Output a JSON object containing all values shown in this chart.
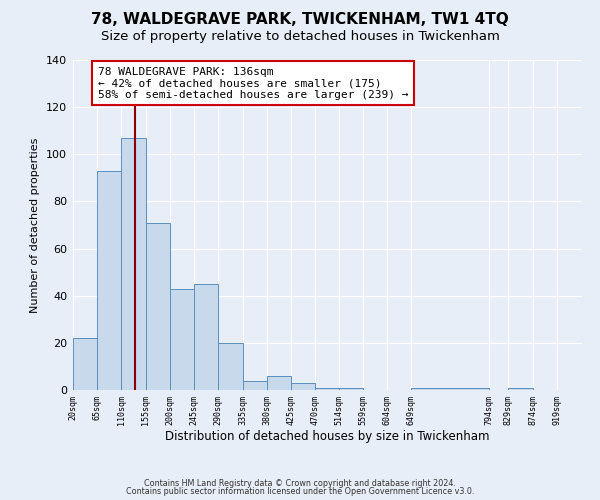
{
  "title": "78, WALDEGRAVE PARK, TWICKENHAM, TW1 4TQ",
  "subtitle": "Size of property relative to detached houses in Twickenham",
  "xlabel": "Distribution of detached houses by size in Twickenham",
  "ylabel": "Number of detached properties",
  "bin_labels": [
    "20sqm",
    "65sqm",
    "110sqm",
    "155sqm",
    "200sqm",
    "245sqm",
    "290sqm",
    "335sqm",
    "380sqm",
    "425sqm",
    "470sqm",
    "514sqm",
    "559sqm",
    "604sqm",
    "649sqm",
    "794sqm",
    "829sqm",
    "874sqm",
    "919sqm"
  ],
  "bar_heights": [
    22,
    93,
    107,
    71,
    43,
    45,
    20,
    4,
    6,
    3,
    1,
    1,
    0,
    0,
    1,
    0,
    1,
    0
  ],
  "bin_edges": [
    20,
    65,
    110,
    155,
    200,
    245,
    290,
    335,
    380,
    425,
    470,
    514,
    559,
    604,
    649,
    794,
    829,
    874,
    919
  ],
  "bar_color": "#c9d9ec",
  "bar_edge_color": "#5a8fc0",
  "property_line_x": 136,
  "property_line_color": "#8b0000",
  "annotation_text": "78 WALDEGRAVE PARK: 136sqm\n← 42% of detached houses are smaller (175)\n58% of semi-detached houses are larger (239) →",
  "annotation_box_color": "white",
  "annotation_box_edge_color": "#cc0000",
  "ylim": [
    0,
    140
  ],
  "yticks": [
    0,
    20,
    40,
    60,
    80,
    100,
    120,
    140
  ],
  "background_color": "#e8eef8",
  "grid_color": "white",
  "footer_line1": "Contains HM Land Registry data © Crown copyright and database right 2024.",
  "footer_line2": "Contains public sector information licensed under the Open Government Licence v3.0.",
  "title_fontsize": 11,
  "subtitle_fontsize": 9.5
}
